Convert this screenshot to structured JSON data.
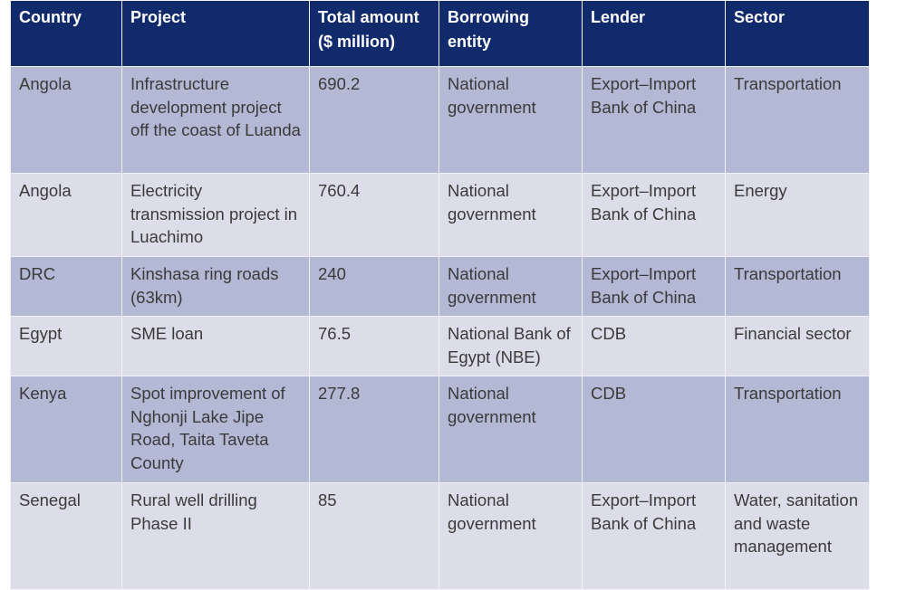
{
  "colors": {
    "header": "#102a6b",
    "row_odd": "#b3b8d4",
    "row_even": "#dcdde8"
  },
  "headers": [
    "Country",
    "Project",
    "Total amount ($ million)",
    "Borrowing entity",
    "Lender",
    "Sector"
  ],
  "rows": [
    [
      "Angola",
      "Infrastructure development project off the coast of Luanda",
      "690.2",
      "National government",
      "Export–Import Bank of China",
      "Transportation"
    ],
    [
      "Angola",
      "Electricity transmission project in Luachimo",
      "760.4",
      "National government",
      "Export–Import Bank of China",
      "Energy"
    ],
    [
      "DRC",
      "Kinshasa ring roads (63km)",
      "240",
      "National government",
      "Export–Import Bank of China",
      "Transportation"
    ],
    [
      "Egypt",
      "SME loan",
      "76.5",
      "National Bank of Egypt (NBE)",
      "CDB",
      "Financial sector"
    ],
    [
      "Kenya",
      "Spot improvement of Nghonji Lake Jipe Road, Taita Taveta County",
      "277.8",
      "National government",
      "CDB",
      "Transportation"
    ],
    [
      "Senegal",
      "Rural well drilling Phase II",
      "85",
      "National government",
      "Export–Import Bank of China",
      "Water, sanitation and waste management"
    ]
  ]
}
